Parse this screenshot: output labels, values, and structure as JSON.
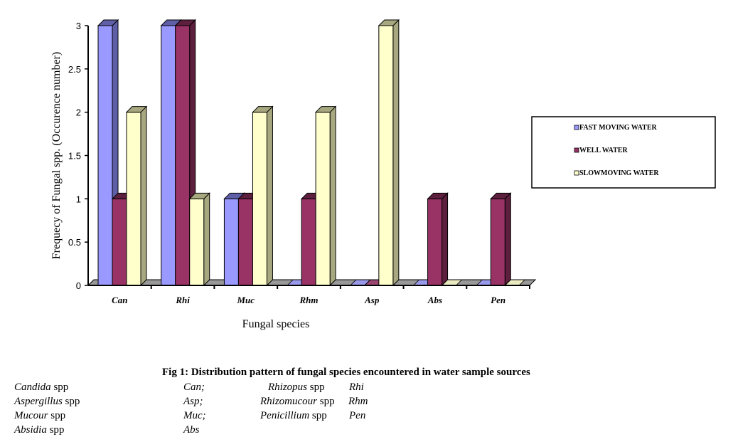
{
  "chart_data": {
    "type": "bar",
    "style": "3d-clustered",
    "categories": [
      "Can",
      "Rhi",
      "Muc",
      "Rhm",
      "Asp",
      "Abs",
      "Pen"
    ],
    "series": [
      {
        "name": "FAST MOVING WATER",
        "values": [
          3,
          3,
          1,
          0,
          0,
          0,
          0
        ],
        "color": "#9999ff",
        "side": "#5f5fa8"
      },
      {
        "name": "WELL WATER",
        "values": [
          1,
          3,
          1,
          1,
          0,
          1,
          1
        ],
        "color": "#993366",
        "side": "#5c1f3d"
      },
      {
        "name": "SLOWMOVING WATER",
        "values": [
          2,
          1,
          2,
          2,
          3,
          0,
          0
        ],
        "color": "#ffffcc",
        "side": "#a8a880"
      }
    ],
    "xlabel": "Fungal species",
    "ylabel": "Frequecy of Fungal spp. (Occurence number)",
    "ylim": [
      0,
      3
    ],
    "yticks": [
      "0",
      "0.5",
      "1",
      "1.5",
      "2",
      "2.5",
      "3"
    ],
    "legend_position": "right",
    "grid": false
  },
  "caption": {
    "title": "Fig 1: Distribution pattern of fungal species encountered in water sample sources",
    "key": [
      {
        "name": "Candida",
        "suffix": " spp",
        "abbr": "Can;"
      },
      {
        "name": "Aspergillus",
        "suffix": " spp",
        "abbr": "Asp;"
      },
      {
        "name": "Mucour",
        "suffix": " spp",
        "abbr": "Muc;"
      },
      {
        "name": "Absidia",
        "suffix": " spp",
        "abbr": "Abs"
      },
      {
        "name": "Rhizopus",
        "suffix": " spp",
        "abbr": "Rhi"
      },
      {
        "name": "Rhizomucour",
        "suffix": " spp",
        "abbr": "Rhm"
      },
      {
        "name": "Penicillium",
        "suffix": " spp",
        "abbr": "Pen"
      }
    ]
  }
}
